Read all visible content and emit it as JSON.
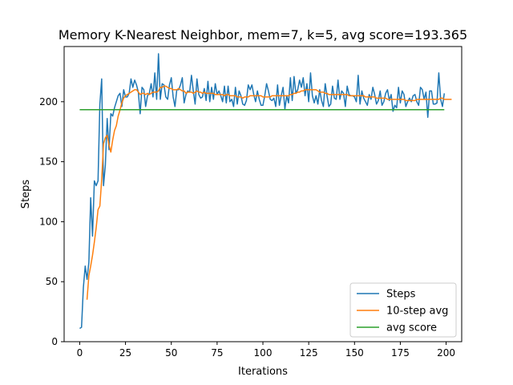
{
  "chart_data": {
    "type": "line",
    "title": "Memory K-Nearest Neighbor, mem=7, k=5, avg score=193.365",
    "xlabel": "Iterations",
    "ylabel": "Steps",
    "xlim": [
      -8.5,
      208.5
    ],
    "ylim": [
      0,
      246
    ],
    "xticks": [
      0,
      25,
      50,
      75,
      100,
      125,
      150,
      175,
      200
    ],
    "yticks": [
      0,
      50,
      100,
      150,
      200
    ],
    "grid": false,
    "legend_position": "bottom-right",
    "series": [
      {
        "name": "Steps",
        "color": "#1f77b4",
        "x_start": 0,
        "values": [
          11,
          12,
          45,
          63,
          52,
          66,
          120,
          88,
          134,
          130,
          134,
          198,
          219,
          130,
          147,
          186,
          160,
          190,
          188,
          195,
          200,
          205,
          207,
          196,
          210,
          204,
          204,
          207,
          219,
          212,
          218,
          214,
          208,
          190,
          212,
          210,
          196,
          205,
          207,
          215,
          204,
          224,
          202,
          240,
          202,
          215,
          214,
          204,
          202,
          214,
          220,
          204,
          196,
          210,
          210,
          214,
          220,
          199,
          206,
          209,
          208,
          222,
          209,
          198,
          219,
          206,
          203,
          204,
          211,
          201,
          217,
          200,
          212,
          202,
          215,
          206,
          209,
          205,
          200,
          213,
          199,
          213,
          200,
          202,
          196,
          212,
          198,
          209,
          205,
          198,
          197,
          201,
          214,
          210,
          214,
          206,
          200,
          209,
          202,
          197,
          197,
          205,
          215,
          209,
          202,
          201,
          203,
          196,
          214,
          197,
          205,
          212,
          194,
          205,
          199,
          220,
          201,
          221,
          207,
          210,
          218,
          212,
          220,
          205,
          215,
          200,
          224,
          205,
          199,
          205,
          198,
          210,
          201,
          196,
          215,
          205,
          196,
          198,
          213,
          203,
          202,
          218,
          202,
          209,
          207,
          196,
          213,
          206,
          205,
          205,
          204,
          200,
          222,
          198,
          209,
          203,
          200,
          197,
          206,
          202,
          212,
          206,
          198,
          201,
          209,
          197,
          200,
          207,
          210,
          201,
          206,
          192,
          197,
          195,
          212,
          199,
          209,
          206,
          196,
          200,
          203,
          200,
          205,
          206,
          200,
          197,
          212,
          210,
          202,
          208,
          187,
          209,
          209,
          198,
          198,
          199,
          224,
          202,
          196,
          207
        ]
      },
      {
        "name": "10-step avg",
        "color": "#ff7f0e",
        "x_start": 4,
        "values": [
          35,
          55,
          63,
          72,
          83,
          95,
          110,
          113,
          135,
          165,
          170,
          172,
          164,
          158,
          168,
          176,
          180,
          188,
          193,
          199,
          203,
          205,
          206,
          207,
          208,
          209,
          210,
          210,
          208,
          206,
          207,
          207,
          206,
          207,
          206,
          207,
          208,
          208,
          208,
          209,
          212,
          212,
          213,
          213,
          212,
          211,
          211,
          210,
          210,
          210,
          211,
          210,
          209,
          209,
          207,
          208,
          208,
          208,
          207,
          208,
          209,
          208,
          208,
          207,
          208,
          207,
          207,
          207,
          207,
          207,
          206,
          206,
          206,
          206,
          206,
          205,
          206,
          206,
          205,
          205,
          205,
          205,
          204,
          204,
          204,
          203,
          204,
          204,
          204,
          205,
          205,
          205,
          205,
          205,
          205,
          205,
          204,
          204,
          204,
          204,
          204,
          205,
          205,
          205,
          205,
          205,
          205,
          205,
          205,
          205,
          205,
          206,
          206,
          207,
          207,
          208,
          208,
          209,
          209,
          210,
          210,
          210,
          210,
          210,
          210,
          210,
          209,
          208,
          208,
          208,
          207,
          207,
          206,
          206,
          206,
          206,
          206,
          206,
          206,
          206,
          206,
          206,
          206,
          205,
          205,
          205,
          205,
          205,
          205,
          205,
          205,
          205,
          204,
          204,
          204,
          204,
          204,
          204,
          203,
          203,
          203,
          203,
          203,
          203,
          202,
          202,
          202,
          202,
          202,
          202,
          202,
          202,
          202,
          202,
          201,
          201,
          201,
          201,
          201,
          201,
          202,
          202,
          202,
          202,
          202,
          202,
          202,
          202,
          202,
          202,
          202,
          202,
          202,
          203,
          203,
          202,
          202,
          202,
          202,
          202
        ]
      },
      {
        "name": "avg score",
        "color": "#2ca02c",
        "x": [
          0,
          199
        ],
        "values": [
          193.365,
          193.365
        ]
      }
    ]
  }
}
